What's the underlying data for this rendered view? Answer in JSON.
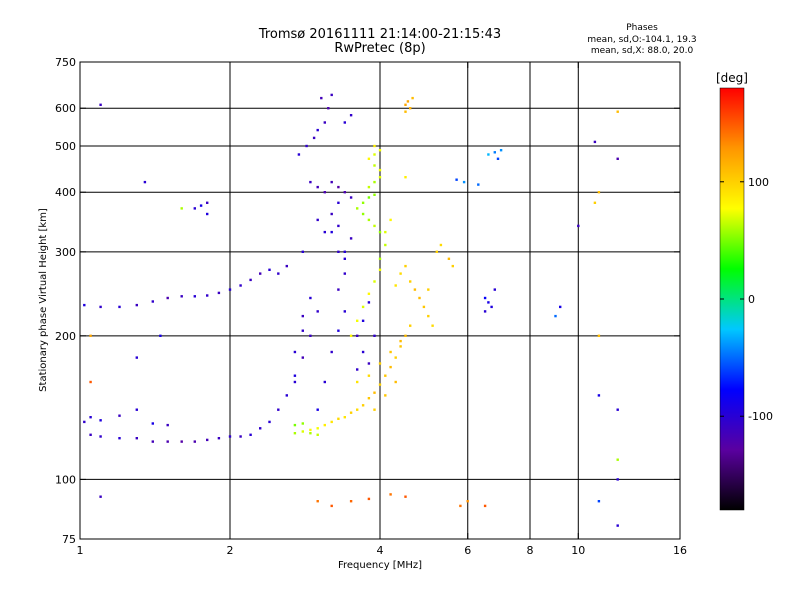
{
  "header": {
    "title": "Tromsø 20161111 21:14:00-21:15:43",
    "subtitle": "RwPretec (8p)",
    "phase_title": "Phases",
    "phase_line1": "mean, sd,O:-104.1, 19.3",
    "phase_line2": "mean, sd,X:  88.0, 20.0"
  },
  "chart_data": {
    "type": "scatter",
    "title": "Tromsø 20161111 21:14:00-21:15:43",
    "subtitle": "RwPretec (8p)",
    "xlabel": "Frequency [MHz]",
    "ylabel": "Stationary phase Virtual Height [km]",
    "x_scale": "log",
    "y_scale": "log",
    "xlim": [
      1,
      16
    ],
    "ylim": [
      75,
      750
    ],
    "x_ticks": [
      1,
      2,
      4,
      6,
      8,
      10,
      16
    ],
    "x_tick_labels": [
      "1",
      "2",
      "4",
      "6",
      "8",
      "10",
      "16"
    ],
    "y_ticks": [
      75,
      100,
      200,
      300,
      400,
      500,
      600,
      750
    ],
    "y_tick_labels": [
      "75",
      "100",
      "200",
      "300",
      "400",
      "500",
      "600",
      "750"
    ],
    "x_grid": [
      2,
      4,
      6,
      8,
      10
    ],
    "y_grid": [
      100,
      200,
      300,
      400,
      500,
      600
    ],
    "grid": true,
    "colorbar": {
      "label": "[deg]",
      "range": [
        -180,
        180
      ],
      "ticks": [
        100,
        0,
        -100
      ],
      "tick_labels": [
        "100",
        "0",
        "-100"
      ],
      "colors": [
        "#000000",
        "#5a00a0",
        "#0000ff",
        "#00c8ff",
        "#00ff00",
        "#ffff00",
        "#ff9600",
        "#ff0000"
      ]
    },
    "series": [
      {
        "name": "O",
        "points": [
          [
            1.05,
            124,
            -110
          ],
          [
            1.1,
            123,
            -105
          ],
          [
            1.2,
            122,
            -100
          ],
          [
            1.3,
            122,
            -110
          ],
          [
            1.4,
            120,
            -115
          ],
          [
            1.5,
            120,
            -120
          ],
          [
            1.6,
            120,
            -125
          ],
          [
            1.7,
            120,
            -120
          ],
          [
            1.8,
            121,
            -115
          ],
          [
            1.9,
            122,
            -110
          ],
          [
            2.0,
            123,
            -105
          ],
          [
            2.1,
            123,
            -110
          ],
          [
            2.2,
            124,
            -100
          ],
          [
            2.3,
            128,
            -105
          ],
          [
            2.4,
            132,
            -100
          ],
          [
            1.02,
            132,
            -105
          ],
          [
            1.05,
            135,
            -100
          ],
          [
            1.1,
            133,
            -95
          ],
          [
            1.2,
            136,
            -110
          ],
          [
            1.3,
            140,
            -100
          ],
          [
            1.4,
            131,
            -90
          ],
          [
            1.5,
            130,
            -110
          ],
          [
            1.02,
            232,
            -95
          ],
          [
            1.1,
            230,
            -105
          ],
          [
            1.2,
            230,
            -100
          ],
          [
            1.3,
            232,
            -110
          ],
          [
            1.4,
            236,
            -105
          ],
          [
            1.5,
            240,
            -120
          ],
          [
            1.6,
            242,
            -110
          ],
          [
            1.7,
            242,
            -100
          ],
          [
            1.8,
            243,
            -105
          ],
          [
            1.9,
            246,
            -110
          ],
          [
            2.0,
            250,
            -100
          ],
          [
            2.1,
            255,
            -105
          ],
          [
            2.2,
            262,
            -110
          ],
          [
            2.3,
            270,
            -115
          ],
          [
            2.4,
            275,
            -100
          ],
          [
            2.5,
            270,
            -105
          ],
          [
            2.5,
            140,
            -105
          ],
          [
            2.6,
            150,
            -100
          ],
          [
            2.7,
            165,
            -95
          ],
          [
            2.7,
            185,
            -100
          ],
          [
            2.8,
            205,
            -105
          ],
          [
            2.8,
            220,
            -110
          ],
          [
            2.9,
            240,
            -100
          ],
          [
            3.0,
            225,
            -105
          ],
          [
            2.9,
            200,
            -110
          ],
          [
            2.8,
            180,
            -115
          ],
          [
            2.7,
            160,
            -100
          ],
          [
            3.0,
            140,
            -90
          ],
          [
            3.1,
            160,
            -100
          ],
          [
            3.2,
            185,
            -105
          ],
          [
            3.3,
            205,
            -95
          ],
          [
            3.4,
            225,
            -100
          ],
          [
            3.3,
            250,
            -110
          ],
          [
            3.4,
            270,
            -105
          ],
          [
            3.4,
            300,
            -100
          ],
          [
            3.5,
            320,
            -110
          ],
          [
            3.6,
            170,
            -105
          ],
          [
            3.7,
            185,
            -100
          ],
          [
            3.6,
            200,
            -110
          ],
          [
            3.7,
            215,
            -95
          ],
          [
            3.8,
            235,
            -100
          ],
          [
            3.9,
            200,
            -105
          ],
          [
            3.8,
            175,
            -110
          ],
          [
            2.75,
            480,
            -100
          ],
          [
            2.85,
            500,
            -105
          ],
          [
            2.95,
            520,
            -110
          ],
          [
            3.0,
            540,
            -100
          ],
          [
            3.1,
            560,
            -110
          ],
          [
            3.15,
            600,
            -120
          ],
          [
            3.05,
            630,
            -115
          ],
          [
            3.2,
            640,
            -110
          ],
          [
            3.4,
            560,
            -100
          ],
          [
            3.5,
            580,
            -105
          ],
          [
            2.9,
            420,
            -110
          ],
          [
            3.0,
            410,
            -115
          ],
          [
            3.1,
            400,
            -120
          ],
          [
            3.2,
            420,
            -115
          ],
          [
            3.3,
            410,
            -125
          ],
          [
            3.4,
            400,
            -120
          ],
          [
            3.5,
            390,
            -110
          ],
          [
            3.3,
            380,
            -100
          ],
          [
            3.0,
            350,
            -105
          ],
          [
            3.1,
            330,
            -100
          ],
          [
            3.2,
            360,
            -110
          ],
          [
            3.3,
            340,
            -105
          ],
          [
            2.8,
            300,
            -100
          ],
          [
            2.6,
            280,
            -110
          ],
          [
            3.2,
            330,
            -95
          ],
          [
            3.3,
            300,
            -105
          ],
          [
            3.4,
            290,
            -100
          ],
          [
            5.9,
            420,
            -40
          ],
          [
            5.7,
            425,
            -60
          ],
          [
            6.3,
            415,
            -50
          ],
          [
            6.6,
            480,
            -30
          ],
          [
            6.8,
            485,
            -45
          ],
          [
            6.9,
            470,
            -60
          ],
          [
            7.0,
            490,
            -40
          ],
          [
            6.5,
            240,
            -80
          ],
          [
            6.6,
            235,
            -90
          ],
          [
            6.7,
            230,
            -95
          ],
          [
            6.5,
            225,
            -100
          ],
          [
            6.8,
            250,
            -100
          ],
          [
            10.8,
            510,
            -110
          ],
          [
            12,
            470,
            -120
          ],
          [
            12,
            80,
            -100
          ],
          [
            11,
            90,
            -60
          ],
          [
            12,
            100,
            -100
          ],
          [
            10,
            340,
            -110
          ],
          [
            9,
            220,
            -50
          ],
          [
            9.2,
            230,
            -90
          ],
          [
            11,
            150,
            -90
          ],
          [
            12,
            140,
            -100
          ],
          [
            1.1,
            610,
            -110
          ],
          [
            1.1,
            92,
            -110
          ],
          [
            1.35,
            420,
            -100
          ],
          [
            1.45,
            200,
            -90
          ],
          [
            1.3,
            180,
            -100
          ],
          [
            1.7,
            370,
            -100
          ],
          [
            1.75,
            375,
            -90
          ],
          [
            1.8,
            380,
            -110
          ],
          [
            1.8,
            360,
            -95
          ]
        ]
      },
      {
        "name": "X",
        "points": [
          [
            2.7,
            125,
            60
          ],
          [
            2.8,
            126,
            70
          ],
          [
            2.9,
            127,
            80
          ],
          [
            3.0,
            128,
            75
          ],
          [
            3.1,
            130,
            85
          ],
          [
            3.2,
            132,
            90
          ],
          [
            3.3,
            134,
            95
          ],
          [
            3.4,
            135,
            90
          ],
          [
            3.5,
            138,
            100
          ],
          [
            3.6,
            140,
            95
          ],
          [
            3.7,
            143,
            100
          ],
          [
            3.8,
            148,
            105
          ],
          [
            3.9,
            152,
            110
          ],
          [
            4.0,
            158,
            100
          ],
          [
            4.1,
            165,
            105
          ],
          [
            4.2,
            172,
            110
          ],
          [
            4.3,
            180,
            100
          ],
          [
            4.4,
            190,
            105
          ],
          [
            4.5,
            200,
            110
          ],
          [
            4.6,
            210,
            100
          ],
          [
            3.6,
            160,
            90
          ],
          [
            3.8,
            165,
            95
          ],
          [
            4.0,
            175,
            100
          ],
          [
            4.2,
            185,
            105
          ],
          [
            4.4,
            195,
            110
          ],
          [
            3.9,
            140,
            100
          ],
          [
            4.1,
            150,
            105
          ],
          [
            4.3,
            160,
            110
          ],
          [
            3.5,
            200,
            80
          ],
          [
            3.6,
            215,
            75
          ],
          [
            3.7,
            230,
            70
          ],
          [
            3.8,
            245,
            80
          ],
          [
            3.9,
            260,
            70
          ],
          [
            4.0,
            275,
            75
          ],
          [
            4.0,
            290,
            60
          ],
          [
            4.1,
            310,
            65
          ],
          [
            4.1,
            330,
            70
          ],
          [
            4.2,
            350,
            80
          ],
          [
            3.6,
            370,
            60
          ],
          [
            3.7,
            380,
            55
          ],
          [
            3.8,
            390,
            50
          ],
          [
            3.9,
            395,
            55
          ],
          [
            3.8,
            410,
            65
          ],
          [
            3.9,
            420,
            60
          ],
          [
            4.0,
            430,
            70
          ],
          [
            4.0,
            445,
            75
          ],
          [
            3.9,
            455,
            65
          ],
          [
            3.7,
            360,
            55
          ],
          [
            3.8,
            350,
            60
          ],
          [
            3.9,
            340,
            65
          ],
          [
            4.0,
            330,
            55
          ],
          [
            4.3,
            255,
            90
          ],
          [
            4.4,
            270,
            95
          ],
          [
            4.5,
            280,
            100
          ],
          [
            4.6,
            260,
            100
          ],
          [
            4.7,
            250,
            110
          ],
          [
            4.8,
            240,
            110
          ],
          [
            4.9,
            230,
            105
          ],
          [
            5.0,
            220,
            100
          ],
          [
            5.1,
            210,
            95
          ],
          [
            5.0,
            250,
            100
          ],
          [
            4.5,
            590,
            110
          ],
          [
            4.6,
            600,
            115
          ],
          [
            4.55,
            620,
            120
          ],
          [
            4.65,
            630,
            110
          ],
          [
            4.5,
            610,
            120
          ],
          [
            3.8,
            470,
            80
          ],
          [
            3.9,
            480,
            70
          ],
          [
            4.0,
            490,
            75
          ],
          [
            3.9,
            500,
            85
          ],
          [
            4.5,
            430,
            85
          ],
          [
            2.7,
            130,
            50
          ],
          [
            2.8,
            131,
            55
          ],
          [
            2.9,
            125,
            60
          ],
          [
            3.0,
            124,
            65
          ],
          [
            3.0,
            90,
            140
          ],
          [
            3.2,
            88,
            150
          ],
          [
            3.5,
            90,
            145
          ],
          [
            3.8,
            91,
            150
          ],
          [
            4.2,
            93,
            140
          ],
          [
            4.5,
            92,
            150
          ],
          [
            5.8,
            88,
            140
          ],
          [
            6.5,
            88,
            150
          ],
          [
            6.0,
            90,
            130
          ],
          [
            5.2,
            300,
            100
          ],
          [
            5.3,
            310,
            95
          ],
          [
            5.5,
            290,
            110
          ],
          [
            5.6,
            280,
            100
          ],
          [
            12,
            590,
            110
          ],
          [
            11,
            400,
            110
          ],
          [
            10.8,
            380,
            100
          ],
          [
            11,
            200,
            110
          ],
          [
            12,
            110,
            60
          ],
          [
            1.05,
            200,
            120
          ],
          [
            1.05,
            160,
            150
          ],
          [
            1.6,
            370,
            60
          ]
        ]
      }
    ]
  }
}
